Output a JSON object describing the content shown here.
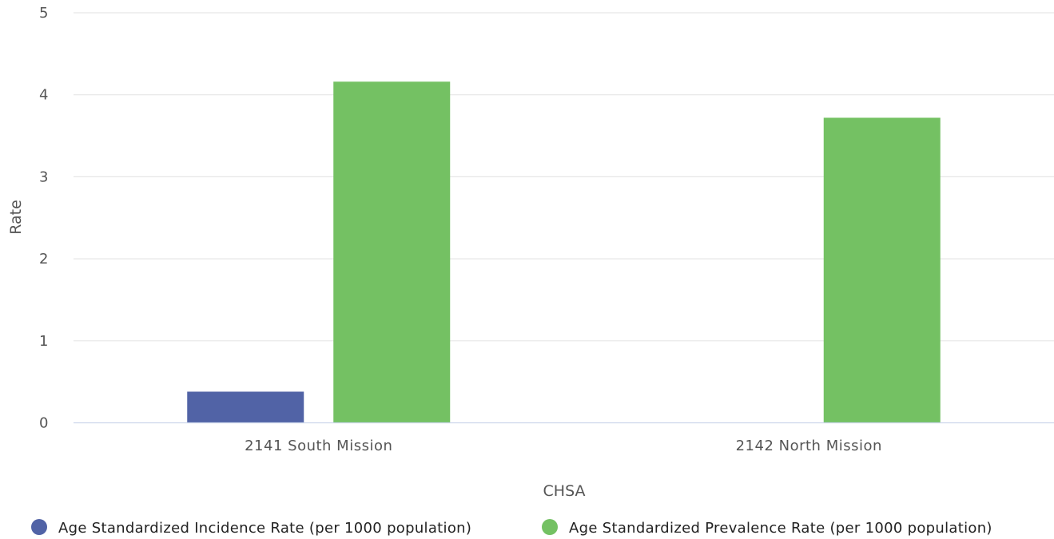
{
  "chart_data": {
    "type": "bar",
    "categories": [
      "2141 South Mission",
      "2142 North Mission"
    ],
    "series": [
      {
        "name": "Age Standardized Incidence Rate (per 1000 population)",
        "color": "#5163a6",
        "values": [
          0.38,
          null
        ]
      },
      {
        "name": "Age Standardized Prevalence Rate (per 1000 population)",
        "color": "#74c163",
        "values": [
          4.16,
          3.72
        ]
      }
    ],
    "xlabel": "CHSA",
    "ylabel": "Rate",
    "ylim": [
      0,
      5
    ],
    "yticks": [
      "0",
      "1",
      "2",
      "3",
      "4",
      "5"
    ],
    "grid": true,
    "legend": "bottom-center"
  }
}
